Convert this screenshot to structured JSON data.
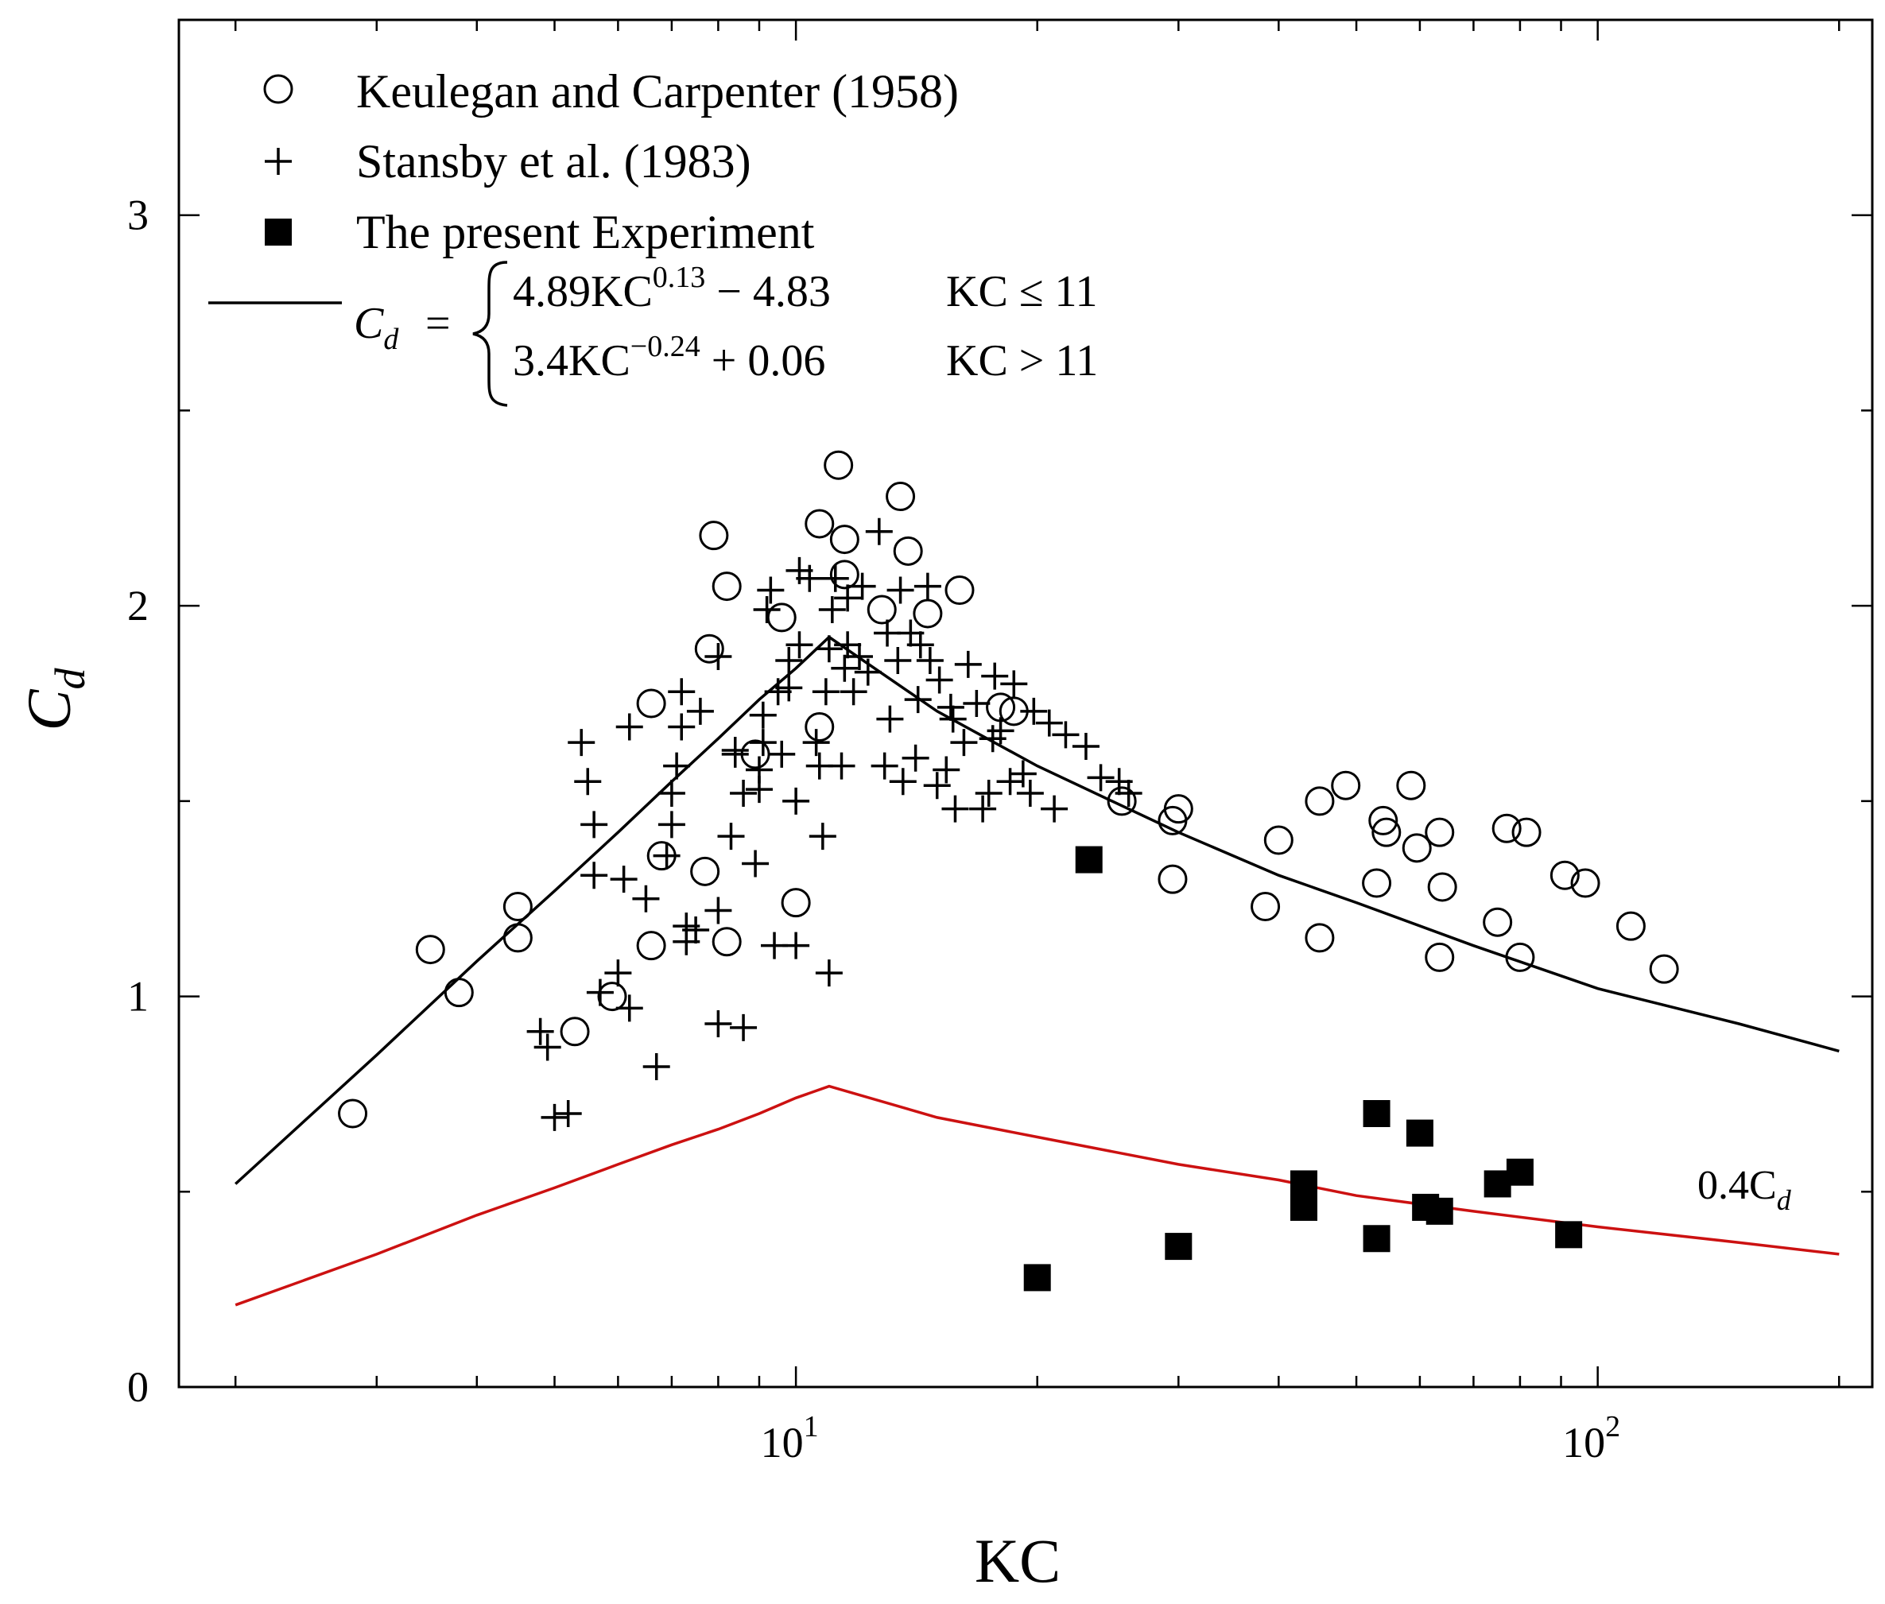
{
  "chart_data": {
    "type": "scatter",
    "xlabel": "KC",
    "ylabel": "C_d",
    "xscale": "log",
    "xlim": [
      1.7,
      220
    ],
    "ylim": [
      0,
      3.5
    ],
    "yticks": [
      0,
      1,
      2,
      3
    ],
    "ytick_labels": [
      "0",
      "1",
      "2",
      "3"
    ],
    "xticks": [
      10,
      100
    ],
    "xtick_labels": [
      {
        "base": "10",
        "exp": "1"
      },
      {
        "base": "10",
        "exp": "2"
      }
    ],
    "legend": {
      "placement": "top-left",
      "entries": [
        {
          "marker": "open-circle",
          "label": "Keulegan and Carpenter (1958)"
        },
        {
          "marker": "plus",
          "label": "Stansby et al. (1983)"
        },
        {
          "marker": "filled-square",
          "label": "The present Experiment"
        },
        {
          "marker": "line",
          "label": "C_d = {4.89KC^0.13 − 4.83, KC ≤ 11 ; 3.4KC^−0.24 + 0.06, KC > 11}"
        }
      ],
      "formula": {
        "lhs_base": "C",
        "lhs_sub": "d",
        "equals": "=",
        "row1_expr": "4.89KC",
        "row1_exp": "0.13",
        "row1_tail": "− 4.83",
        "row1_cond": "KC ≤ 11",
        "row2_expr": "3.4KC",
        "row2_exp": "−0.24",
        "row2_tail": "+ 0.06",
        "row2_cond": "KC > 11"
      }
    },
    "annotation": {
      "base": "0.4C",
      "sub": "d",
      "points_to": "red curve"
    },
    "series": [
      {
        "name": "Keulegan and Carpenter (1958)",
        "marker": "open-circle",
        "color": "#000000",
        "points": [
          [
            2.8,
            0.7
          ],
          [
            3.5,
            1.12
          ],
          [
            3.8,
            1.01
          ],
          [
            4.5,
            1.23
          ],
          [
            4.5,
            1.15
          ],
          [
            5.3,
            0.91
          ],
          [
            5.9,
            1.0
          ],
          [
            6.6,
            1.75
          ],
          [
            6.6,
            1.13
          ],
          [
            6.8,
            1.36
          ],
          [
            7.7,
            1.32
          ],
          [
            7.9,
            2.18
          ],
          [
            7.8,
            1.89
          ],
          [
            8.2,
            2.05
          ],
          [
            8.2,
            1.14
          ],
          [
            8.9,
            1.62
          ],
          [
            9.6,
            1.97
          ],
          [
            10.0,
            1.24
          ],
          [
            10.7,
            2.21
          ],
          [
            10.7,
            1.69
          ],
          [
            11.3,
            2.36
          ],
          [
            11.5,
            2.17
          ],
          [
            11.5,
            2.08
          ],
          [
            12.8,
            1.99
          ],
          [
            13.5,
            2.28
          ],
          [
            13.8,
            2.14
          ],
          [
            14.6,
            1.98
          ],
          [
            16.0,
            2.04
          ],
          [
            18.0,
            1.74
          ],
          [
            18.7,
            1.73
          ],
          [
            25.5,
            1.5
          ],
          [
            29.5,
            1.45
          ],
          [
            30.0,
            1.48
          ],
          [
            29.5,
            1.3
          ],
          [
            38.5,
            1.23
          ],
          [
            40.0,
            1.4
          ],
          [
            45.0,
            1.15
          ],
          [
            45.0,
            1.5
          ],
          [
            48.5,
            1.54
          ],
          [
            53.0,
            1.29
          ],
          [
            54.0,
            1.45
          ],
          [
            54.5,
            1.42
          ],
          [
            58.5,
            1.54
          ],
          [
            59.5,
            1.38
          ],
          [
            63.5,
            1.42
          ],
          [
            63.5,
            1.1
          ],
          [
            64.0,
            1.28
          ],
          [
            75.0,
            1.19
          ],
          [
            77.0,
            1.43
          ],
          [
            80.0,
            1.1
          ],
          [
            81.5,
            1.42
          ],
          [
            91.0,
            1.31
          ],
          [
            96.5,
            1.29
          ],
          [
            110.0,
            1.18
          ],
          [
            121.0,
            1.07
          ]
        ]
      },
      {
        "name": "Stansby et al. (1983)",
        "marker": "plus",
        "color": "#000000",
        "points": [
          [
            4.8,
            0.91
          ],
          [
            4.9,
            0.87
          ],
          [
            5.0,
            0.69
          ],
          [
            5.2,
            0.7
          ],
          [
            5.4,
            1.65
          ],
          [
            5.5,
            1.55
          ],
          [
            5.6,
            1.44
          ],
          [
            5.6,
            1.31
          ],
          [
            5.7,
            1.01
          ],
          [
            6.0,
            1.06
          ],
          [
            6.1,
            1.3
          ],
          [
            6.2,
            0.97
          ],
          [
            6.2,
            1.69
          ],
          [
            6.5,
            1.25
          ],
          [
            6.7,
            0.82
          ],
          [
            6.9,
            1.36
          ],
          [
            7.0,
            1.44
          ],
          [
            7.0,
            1.52
          ],
          [
            7.1,
            1.59
          ],
          [
            7.2,
            1.69
          ],
          [
            7.2,
            1.78
          ],
          [
            7.3,
            1.18
          ],
          [
            7.3,
            1.14
          ],
          [
            7.5,
            1.17
          ],
          [
            7.6,
            1.73
          ],
          [
            8.0,
            0.93
          ],
          [
            8.0,
            1.22
          ],
          [
            8.0,
            1.87
          ],
          [
            8.3,
            1.41
          ],
          [
            8.4,
            1.62
          ],
          [
            8.4,
            1.63
          ],
          [
            8.6,
            0.92
          ],
          [
            8.6,
            1.52
          ],
          [
            8.9,
            1.34
          ],
          [
            9.0,
            1.53
          ],
          [
            9.0,
            1.58
          ],
          [
            9.1,
            1.65
          ],
          [
            9.1,
            1.72
          ],
          [
            9.2,
            1.99
          ],
          [
            9.3,
            2.04
          ],
          [
            9.4,
            1.13
          ],
          [
            9.5,
            1.78
          ],
          [
            9.6,
            1.62
          ],
          [
            9.8,
            1.79
          ],
          [
            9.8,
            1.86
          ],
          [
            10.0,
            1.13
          ],
          [
            10.0,
            1.5
          ],
          [
            10.1,
            1.9
          ],
          [
            10.1,
            2.09
          ],
          [
            10.4,
            2.07
          ],
          [
            10.6,
            1.65
          ],
          [
            10.7,
            1.59
          ],
          [
            10.8,
            1.41
          ],
          [
            10.9,
            1.78
          ],
          [
            11.0,
            1.89
          ],
          [
            11.0,
            1.06
          ],
          [
            11.1,
            1.99
          ],
          [
            11.2,
            2.07
          ],
          [
            11.4,
            1.59
          ],
          [
            11.5,
            1.84
          ],
          [
            11.6,
            1.9
          ],
          [
            11.6,
            2.02
          ],
          [
            11.8,
            1.78
          ],
          [
            12.0,
            1.87
          ],
          [
            12.1,
            2.05
          ],
          [
            12.3,
            1.83
          ],
          [
            12.7,
            2.19
          ],
          [
            12.9,
            1.59
          ],
          [
            13.0,
            1.93
          ],
          [
            13.1,
            1.71
          ],
          [
            13.4,
            1.86
          ],
          [
            13.5,
            2.04
          ],
          [
            13.6,
            1.55
          ],
          [
            13.9,
            1.93
          ],
          [
            14.1,
            1.61
          ],
          [
            14.2,
            1.76
          ],
          [
            14.3,
            1.9
          ],
          [
            14.6,
            2.05
          ],
          [
            14.7,
            1.86
          ],
          [
            15.0,
            1.54
          ],
          [
            15.1,
            1.81
          ],
          [
            15.4,
            1.58
          ],
          [
            15.6,
            1.74
          ],
          [
            15.7,
            1.71
          ],
          [
            15.8,
            1.48
          ],
          [
            16.2,
            1.65
          ],
          [
            16.4,
            1.85
          ],
          [
            16.8,
            1.75
          ],
          [
            17.1,
            1.48
          ],
          [
            17.4,
            1.52
          ],
          [
            17.6,
            1.66
          ],
          [
            17.7,
            1.82
          ],
          [
            18.0,
            1.68
          ],
          [
            18.5,
            1.55
          ],
          [
            18.7,
            1.8
          ],
          [
            19.2,
            1.57
          ],
          [
            19.6,
            1.52
          ],
          [
            19.8,
            1.73
          ],
          [
            20.7,
            1.7
          ],
          [
            21.0,
            1.48
          ],
          [
            21.7,
            1.67
          ],
          [
            23.0,
            1.64
          ],
          [
            24.0,
            1.56
          ],
          [
            25.3,
            1.55
          ],
          [
            26.0,
            1.52
          ]
        ]
      },
      {
        "name": "The present Experiment",
        "marker": "filled-square",
        "color": "#000000",
        "points": [
          [
            20.0,
            0.28
          ],
          [
            23.2,
            1.35
          ],
          [
            30.0,
            0.36
          ],
          [
            43.0,
            0.46
          ],
          [
            43.0,
            0.49
          ],
          [
            43.0,
            0.52
          ],
          [
            53.0,
            0.38
          ],
          [
            53.0,
            0.7
          ],
          [
            60.0,
            0.65
          ],
          [
            61.0,
            0.46
          ],
          [
            63.5,
            0.45
          ],
          [
            75.0,
            0.52
          ],
          [
            80.0,
            0.55
          ],
          [
            92.0,
            0.39
          ]
        ]
      },
      {
        "name": "C_d fit",
        "type": "line",
        "color": "#000000",
        "x": [
          2,
          3,
          4,
          5,
          6,
          7,
          8,
          9,
          10,
          11,
          15,
          20,
          30,
          40,
          50,
          70,
          100,
          150,
          200
        ],
        "y": [
          0.52,
          0.85,
          1.09,
          1.27,
          1.42,
          1.55,
          1.66,
          1.76,
          1.84,
          1.92,
          1.73,
          1.59,
          1.42,
          1.31,
          1.24,
          1.13,
          1.02,
          0.93,
          0.86
        ]
      },
      {
        "name": "0.4C_d",
        "type": "line",
        "color": "#cc1111",
        "x": [
          2,
          3,
          4,
          5,
          6,
          7,
          8,
          9,
          10,
          11,
          15,
          20,
          30,
          40,
          50,
          70,
          100,
          150,
          200
        ],
        "y": [
          0.21,
          0.34,
          0.44,
          0.51,
          0.57,
          0.62,
          0.66,
          0.7,
          0.74,
          0.77,
          0.69,
          0.64,
          0.57,
          0.53,
          0.49,
          0.45,
          0.41,
          0.37,
          0.34
        ]
      }
    ]
  }
}
